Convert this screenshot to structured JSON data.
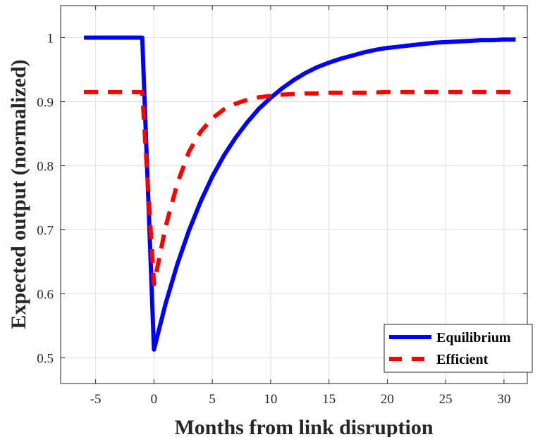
{
  "chart_data": {
    "type": "line",
    "xlabel": "Months from link disruption",
    "ylabel": "Expected output (normalized)",
    "xlim": [
      -8,
      32
    ],
    "ylim": [
      0.46,
      1.05
    ],
    "xticks": [
      -5,
      0,
      5,
      10,
      15,
      20,
      25,
      30
    ],
    "xtick_labels": [
      "-5",
      "0",
      "5",
      "10",
      "15",
      "20",
      "25",
      "30"
    ],
    "yticks": [
      0.5,
      0.6,
      0.7,
      0.8,
      0.9,
      1.0
    ],
    "ytick_labels": [
      "0.5",
      "0.6",
      "0.7",
      "0.8",
      "0.9",
      "1"
    ],
    "grid": true,
    "legend_position": "bottom-right",
    "series": [
      {
        "name": "Equilibrium",
        "color": "#0000ff",
        "style": "solid",
        "x": [
          -6,
          -1,
          0,
          1,
          2,
          3,
          4,
          5,
          6,
          7,
          8,
          9,
          10,
          11,
          12,
          13,
          14,
          15,
          16,
          17,
          18,
          19,
          20,
          21,
          22,
          23,
          24,
          25,
          26,
          27,
          28,
          29,
          30,
          31
        ],
        "y": [
          1.0,
          1.0,
          0.513,
          0.585,
          0.646,
          0.699,
          0.744,
          0.783,
          0.816,
          0.844,
          0.868,
          0.889,
          0.906,
          0.921,
          0.934,
          0.945,
          0.954,
          0.961,
          0.967,
          0.972,
          0.977,
          0.981,
          0.984,
          0.986,
          0.988,
          0.99,
          0.992,
          0.993,
          0.994,
          0.995,
          0.996,
          0.996,
          0.997,
          0.997
        ]
      },
      {
        "name": "Efficient",
        "color": "#ff0000",
        "style": "dashed",
        "x": [
          -6,
          -1,
          0,
          1,
          2,
          3,
          4,
          5,
          6,
          7,
          8,
          9,
          10,
          11,
          12,
          13,
          14,
          15,
          16,
          18,
          20,
          22,
          24,
          26,
          28,
          30,
          31
        ],
        "y": [
          0.915,
          0.915,
          0.615,
          0.705,
          0.772,
          0.822,
          0.853,
          0.874,
          0.888,
          0.897,
          0.903,
          0.907,
          0.909,
          0.911,
          0.912,
          0.913,
          0.913,
          0.914,
          0.914,
          0.914,
          0.915,
          0.915,
          0.915,
          0.915,
          0.915,
          0.915,
          0.915
        ]
      }
    ]
  }
}
